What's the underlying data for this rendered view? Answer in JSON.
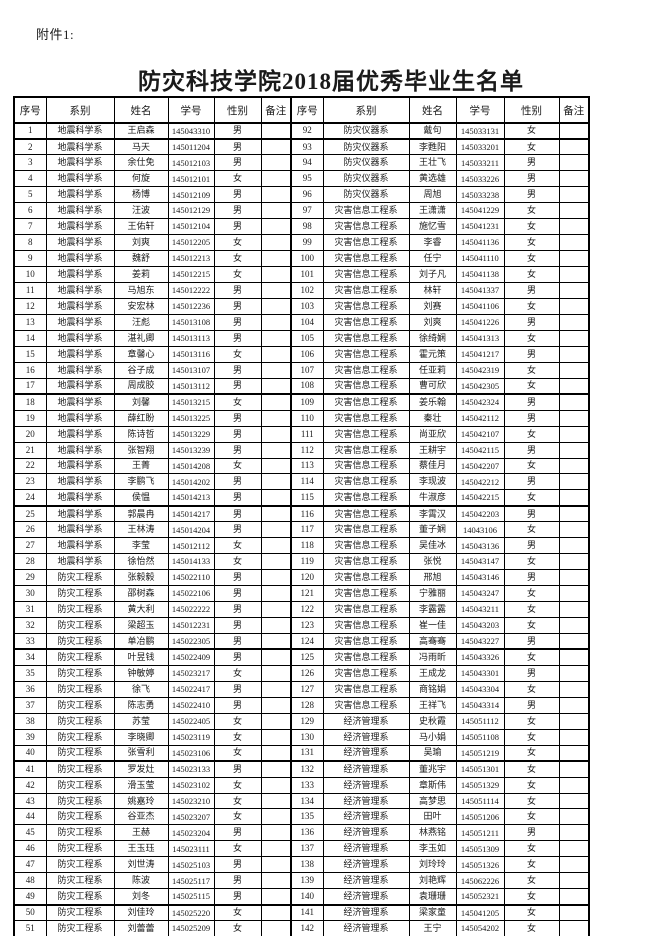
{
  "attachment_label": "附件1:",
  "title": "防灾科技学院2018届优秀毕业生名单",
  "table": {
    "columns": [
      "序号",
      "系别",
      "姓名",
      "学号",
      "性别",
      "备注"
    ],
    "thick_after": [
      0,
      16,
      23,
      32,
      39,
      48
    ],
    "left_rows": [
      [
        "1",
        "地震科学系",
        "王启森",
        "145043310",
        "男",
        ""
      ],
      [
        "2",
        "地震科学系",
        "马天",
        "145011204",
        "男",
        ""
      ],
      [
        "3",
        "地震科学系",
        "余仕免",
        "145012103",
        "男",
        ""
      ],
      [
        "4",
        "地震科学系",
        "何旋",
        "145012101",
        "女",
        ""
      ],
      [
        "5",
        "地震科学系",
        "杨博",
        "145012109",
        "男",
        ""
      ],
      [
        "6",
        "地震科学系",
        "汪波",
        "145012129",
        "男",
        ""
      ],
      [
        "7",
        "地震科学系",
        "王佑轩",
        "145012104",
        "男",
        ""
      ],
      [
        "8",
        "地震科学系",
        "刘爽",
        "145012205",
        "女",
        ""
      ],
      [
        "9",
        "地震科学系",
        "魏舒",
        "145012213",
        "女",
        ""
      ],
      [
        "10",
        "地震科学系",
        "姜莉",
        "145012215",
        "女",
        ""
      ],
      [
        "11",
        "地震科学系",
        "马旭东",
        "145012222",
        "男",
        ""
      ],
      [
        "12",
        "地震科学系",
        "安宏林",
        "145012236",
        "男",
        ""
      ],
      [
        "13",
        "地震科学系",
        "汪彪",
        "145013108",
        "男",
        ""
      ],
      [
        "14",
        "地震科学系",
        "湛礼卿",
        "145013113",
        "男",
        ""
      ],
      [
        "15",
        "地震科学系",
        "章馨心",
        "145013116",
        "女",
        ""
      ],
      [
        "16",
        "地震科学系",
        "谷子成",
        "145013107",
        "男",
        ""
      ],
      [
        "17",
        "地震科学系",
        "周成胶",
        "145013112",
        "男",
        ""
      ],
      [
        "18",
        "地震科学系",
        "刘馨",
        "145013215",
        "女",
        ""
      ],
      [
        "19",
        "地震科学系",
        "薛红盼",
        "145013225",
        "男",
        ""
      ],
      [
        "20",
        "地震科学系",
        "陈诗哲",
        "145013229",
        "男",
        ""
      ],
      [
        "21",
        "地震科学系",
        "张智翔",
        "145013239",
        "男",
        ""
      ],
      [
        "22",
        "地震科学系",
        "王菁",
        "145014208",
        "女",
        ""
      ],
      [
        "23",
        "地震科学系",
        "李鹏飞",
        "145014202",
        "男",
        ""
      ],
      [
        "24",
        "地震科学系",
        "侯愠",
        "145014213",
        "男",
        ""
      ],
      [
        "25",
        "地震科学系",
        "郭晨冉",
        "145014217",
        "男",
        ""
      ],
      [
        "26",
        "地震科学系",
        "王林涛",
        "145014204",
        "男",
        ""
      ],
      [
        "27",
        "地震科学系",
        "李莹",
        "145012112",
        "女",
        ""
      ],
      [
        "28",
        "地震科学系",
        "徐怡然",
        "145014133",
        "女",
        ""
      ],
      [
        "29",
        "防灾工程系",
        "张毅毅",
        "145022110",
        "男",
        ""
      ],
      [
        "30",
        "防灾工程系",
        "邵树森",
        "145022106",
        "男",
        ""
      ],
      [
        "31",
        "防灾工程系",
        "黄大利",
        "145022222",
        "男",
        ""
      ],
      [
        "32",
        "防灾工程系",
        "梁超玉",
        "145012231",
        "男",
        ""
      ],
      [
        "33",
        "防灾工程系",
        "单冶鹏",
        "145022305",
        "男",
        ""
      ],
      [
        "34",
        "防灾工程系",
        "叶昱钱",
        "145022409",
        "男",
        ""
      ],
      [
        "35",
        "防灾工程系",
        "钟敏婷",
        "145023217",
        "女",
        ""
      ],
      [
        "36",
        "防灾工程系",
        "徐飞",
        "145022417",
        "男",
        ""
      ],
      [
        "37",
        "防灾工程系",
        "陈志勇",
        "145022410",
        "男",
        ""
      ],
      [
        "38",
        "防灾工程系",
        "苏莹",
        "145022405",
        "女",
        ""
      ],
      [
        "39",
        "防灾工程系",
        "李晓卿",
        "145023119",
        "女",
        ""
      ],
      [
        "40",
        "防灾工程系",
        "张雪利",
        "145023106",
        "女",
        ""
      ],
      [
        "41",
        "防灾工程系",
        "罗发灶",
        "145023133",
        "男",
        ""
      ],
      [
        "42",
        "防灾工程系",
        "滑玉莹",
        "145023102",
        "女",
        ""
      ],
      [
        "43",
        "防灾工程系",
        "姚嘉玲",
        "145023210",
        "女",
        ""
      ],
      [
        "44",
        "防灾工程系",
        "谷亚杰",
        "145023207",
        "女",
        ""
      ],
      [
        "45",
        "防灾工程系",
        "王赫",
        "145023204",
        "男",
        ""
      ],
      [
        "46",
        "防灾工程系",
        "王玉珏",
        "145023111",
        "女",
        ""
      ],
      [
        "47",
        "防灾工程系",
        "刘世涛",
        "145025103",
        "男",
        ""
      ],
      [
        "48",
        "防灾工程系",
        "陈波",
        "145025117",
        "男",
        ""
      ],
      [
        "49",
        "防灾工程系",
        "刘冬",
        "145025115",
        "男",
        ""
      ],
      [
        "50",
        "防灾工程系",
        "刘佳玲",
        "145025220",
        "女",
        ""
      ],
      [
        "51",
        "防灾工程系",
        "刘蕾蕾",
        "145025209",
        "女",
        ""
      ]
    ],
    "right_rows": [
      [
        "92",
        "防灾仪器系",
        "戴句",
        "145033131",
        "女",
        ""
      ],
      [
        "93",
        "防灾仪器系",
        "李甦阳",
        "145033201",
        "女",
        ""
      ],
      [
        "94",
        "防灾仪器系",
        "王壮飞",
        "145033211",
        "男",
        ""
      ],
      [
        "95",
        "防灾仪器系",
        "黄选雄",
        "145033226",
        "男",
        ""
      ],
      [
        "96",
        "防灾仪器系",
        "周旭",
        "145033238",
        "男",
        ""
      ],
      [
        "97",
        "灾害信息工程系",
        "王潇潇",
        "145041229",
        "女",
        ""
      ],
      [
        "98",
        "灾害信息工程系",
        "施忆雪",
        "145041231",
        "女",
        ""
      ],
      [
        "99",
        "灾害信息工程系",
        "李睿",
        "145041136",
        "女",
        ""
      ],
      [
        "100",
        "灾害信息工程系",
        "任宁",
        "145041110",
        "女",
        ""
      ],
      [
        "101",
        "灾害信息工程系",
        "刘子凡",
        "145041138",
        "女",
        ""
      ],
      [
        "102",
        "灾害信息工程系",
        "林轩",
        "145041337",
        "男",
        ""
      ],
      [
        "103",
        "灾害信息工程系",
        "刘赛",
        "145041106",
        "女",
        ""
      ],
      [
        "104",
        "灾害信息工程系",
        "刘爽",
        "145041226",
        "男",
        ""
      ],
      [
        "105",
        "灾害信息工程系",
        "徐绮娴",
        "145041313",
        "女",
        ""
      ],
      [
        "106",
        "灾害信息工程系",
        "霍元策",
        "145041217",
        "男",
        ""
      ],
      [
        "107",
        "灾害信息工程系",
        "任亚莉",
        "145042319",
        "女",
        ""
      ],
      [
        "108",
        "灾害信息工程系",
        "曹可欣",
        "145042305",
        "女",
        ""
      ],
      [
        "109",
        "灾害信息工程系",
        "姜乐翰",
        "145042324",
        "男",
        ""
      ],
      [
        "110",
        "灾害信息工程系",
        "秦壮",
        "145042112",
        "男",
        ""
      ],
      [
        "111",
        "灾害信息工程系",
        "尚亚欣",
        "145042107",
        "女",
        ""
      ],
      [
        "112",
        "灾害信息工程系",
        "王耕宇",
        "145042115",
        "男",
        ""
      ],
      [
        "113",
        "灾害信息工程系",
        "蔡佳月",
        "145042207",
        "女",
        ""
      ],
      [
        "114",
        "灾害信息工程系",
        "李现波",
        "145042212",
        "男",
        ""
      ],
      [
        "115",
        "灾害信息工程系",
        "牛淑彦",
        "145042215",
        "女",
        ""
      ],
      [
        "116",
        "灾害信息工程系",
        "李霄汉",
        "145042203",
        "男",
        ""
      ],
      [
        "117",
        "灾害信息工程系",
        "董子娴",
        "14043106",
        "女",
        ""
      ],
      [
        "118",
        "灾害信息工程系",
        "吴佳冰",
        "145043136",
        "男",
        ""
      ],
      [
        "119",
        "灾害信息工程系",
        "张悦",
        "145043147",
        "女",
        ""
      ],
      [
        "120",
        "灾害信息工程系",
        "邢旭",
        "145043146",
        "男",
        ""
      ],
      [
        "121",
        "灾害信息工程系",
        "宁雅丽",
        "145043247",
        "女",
        ""
      ],
      [
        "122",
        "灾害信息工程系",
        "李露露",
        "145043211",
        "女",
        ""
      ],
      [
        "123",
        "灾害信息工程系",
        "崔一佳",
        "145043203",
        "女",
        ""
      ],
      [
        "124",
        "灾害信息工程系",
        "高骞骞",
        "145043227",
        "男",
        ""
      ],
      [
        "125",
        "灾害信息工程系",
        "冯雨昕",
        "145043326",
        "女",
        ""
      ],
      [
        "126",
        "灾害信息工程系",
        "王成龙",
        "145043301",
        "男",
        ""
      ],
      [
        "127",
        "灾害信息工程系",
        "商铭娟",
        "145043304",
        "女",
        ""
      ],
      [
        "128",
        "灾害信息工程系",
        "王祥飞",
        "145043314",
        "男",
        ""
      ],
      [
        "129",
        "经济管理系",
        "史秋霞",
        "145051112",
        "女",
        ""
      ],
      [
        "130",
        "经济管理系",
        "马小娟",
        "145051108",
        "女",
        ""
      ],
      [
        "131",
        "经济管理系",
        "吴瑜",
        "145051219",
        "女",
        ""
      ],
      [
        "132",
        "经济管理系",
        "董兆宇",
        "145051301",
        "女",
        ""
      ],
      [
        "133",
        "经济管理系",
        "章斯伟",
        "145051329",
        "女",
        ""
      ],
      [
        "134",
        "经济管理系",
        "高梦思",
        "145051114",
        "女",
        ""
      ],
      [
        "135",
        "经济管理系",
        "田叶",
        "145051206",
        "女",
        ""
      ],
      [
        "136",
        "经济管理系",
        "林燕铭",
        "145051211",
        "男",
        ""
      ],
      [
        "137",
        "经济管理系",
        "李玉如",
        "145051309",
        "女",
        ""
      ],
      [
        "138",
        "经济管理系",
        "刘玲玲",
        "145051326",
        "女",
        ""
      ],
      [
        "139",
        "经济管理系",
        "刘艳辉",
        "145062226",
        "女",
        ""
      ],
      [
        "140",
        "经济管理系",
        "袁珊珊",
        "145052321",
        "女",
        ""
      ],
      [
        "141",
        "经济管理系",
        "梁家童",
        "145041205",
        "女",
        ""
      ],
      [
        "142",
        "经济管理系",
        "王宁",
        "145054202",
        "女",
        ""
      ]
    ]
  }
}
